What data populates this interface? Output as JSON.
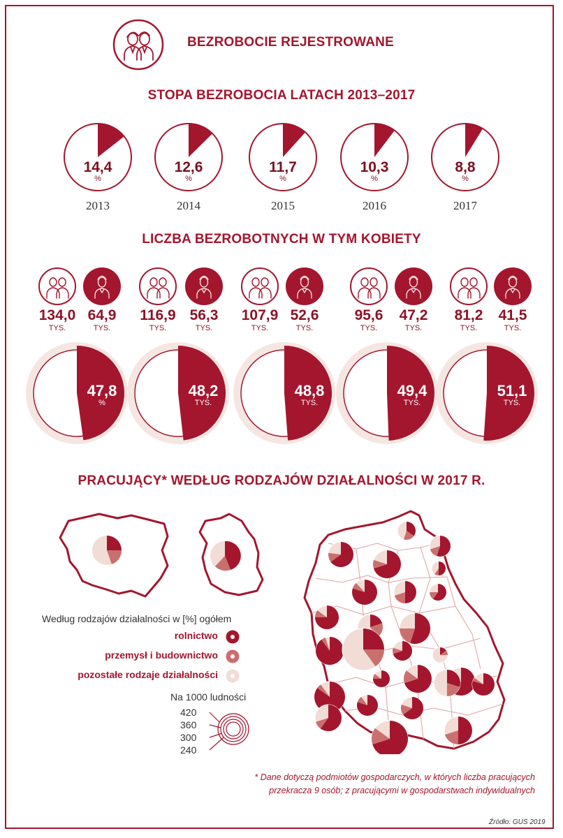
{
  "header": {
    "title": "BEZROBOCIE REJESTROWANE"
  },
  "colors": {
    "primary": "#a3162e",
    "medium": "#c9706e",
    "light": "#f2dcd6",
    "ring_bg": "#f6e6e1"
  },
  "section1": {
    "title": "STOPA BEZROBOCIA LATACH 2013–2017",
    "unit": "%"
  },
  "section2": {
    "title": "LICZBA BEZROBOTNYCH W TYM KOBIETY",
    "unit": "TYS."
  },
  "section3": {
    "title": "PRACUJĄCY* WEDŁUG RODZAJÓW DZIAŁALNOŚCI W 2017 R."
  },
  "legend": {
    "title": "Według rodzajów działalności  w [%] ogółem",
    "items": [
      "rolnictwo",
      "przemysł i budownictwo",
      "pozostałe rodzaje działalności"
    ],
    "size_title": "Na 1000 ludności",
    "size_values": [
      "420",
      "360",
      "300",
      "240"
    ]
  },
  "footnote": {
    "line1": "* Dane dotyczą podmiotów gospodarczych, w których liczba pracujących",
    "line2": "przekracza 9 osób; z pracującymi w gospodarstwach indywidualnych"
  },
  "source": "Źródło: GUS 2019",
  "icons": [
    "people-pair-icon",
    "woman-icon"
  ],
  "chart_data": [
    {
      "type": "pie",
      "title": "STOPA BEZROBOCIA LATACH 2013–2017",
      "categories": [
        "2013",
        "2014",
        "2015",
        "2016",
        "2017"
      ],
      "values": [
        14.4,
        12.6,
        11.7,
        10.3,
        8.8
      ],
      "labels": [
        "14,4",
        "12,6",
        "11,7",
        "10,3",
        "8,8"
      ],
      "unit": "%"
    },
    {
      "type": "table",
      "title": "LICZBA BEZROBOTNYCH W TYM KOBIETY",
      "categories": [
        "2013",
        "2014",
        "2015",
        "2016",
        "2017"
      ],
      "series": [
        {
          "values": [
            134.0,
            116.9,
            107.9,
            95.6,
            81.2
          ],
          "labels": [
            "134,0",
            "116,9",
            "107,9",
            "95,6",
            "81,2"
          ]
        },
        {
          "values": [
            64.9,
            56.3,
            52.6,
            47.2,
            41.5
          ],
          "labels": [
            "64,9",
            "56,3",
            "52,6",
            "47,2",
            "41,5"
          ]
        }
      ],
      "unit": "TYS."
    },
    {
      "type": "pie",
      "categories": [
        "2013",
        "2014",
        "2015",
        "2016",
        "2017"
      ],
      "values": [
        47.8,
        48.2,
        48.8,
        49.4,
        51.1
      ],
      "labels": [
        "47,8",
        "48,2",
        "48,8",
        "49,4",
        "51,1"
      ],
      "units": [
        "%",
        "TYS.",
        "TYS.",
        "TYS.",
        "TYS."
      ]
    }
  ]
}
